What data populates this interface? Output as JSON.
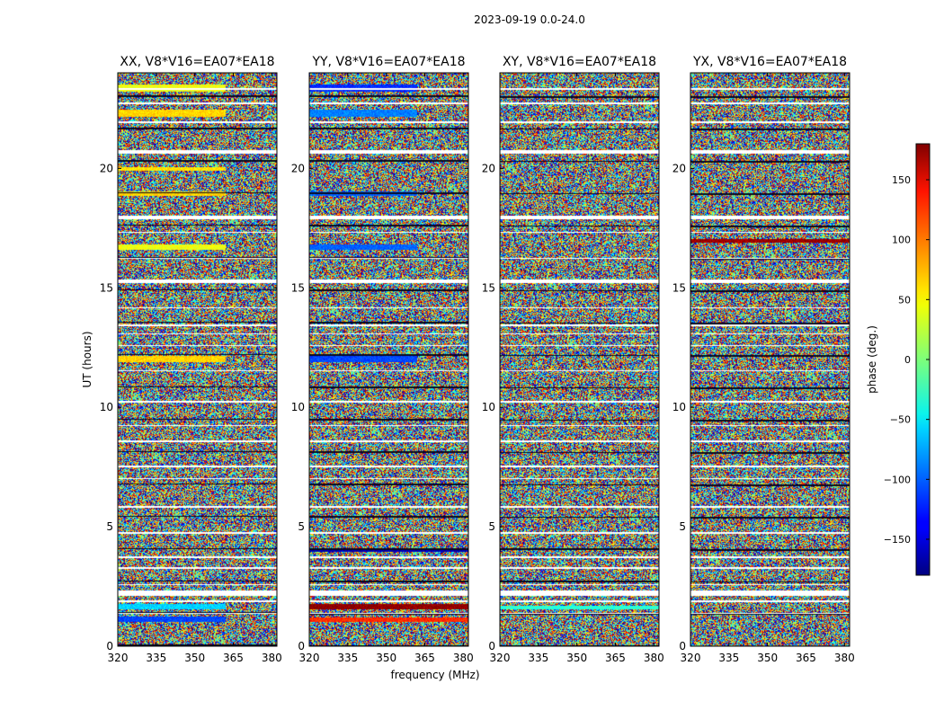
{
  "figure": {
    "suptitle": "2023-09-19 0.0-24.0",
    "xlabel": "frequency (MHz)",
    "ylabel": "UT (hours)",
    "colorbar": {
      "label": "phase (deg.)",
      "ticks": [
        150,
        100,
        50,
        0,
        -50,
        -100,
        -150
      ],
      "range": [
        -180,
        180
      ],
      "colormap": "jet"
    }
  },
  "chart_data": [
    {
      "type": "heatmap",
      "title": "XX, V8*V16=EA07*EA18",
      "xlabel": "frequency (MHz)",
      "ylabel": "UT (hours)",
      "xlim": [
        320,
        382
      ],
      "ylim": [
        0,
        24
      ],
      "xticks": [
        320,
        335,
        350,
        365,
        380
      ],
      "yticks": [
        0,
        5,
        10,
        15,
        20
      ],
      "value": "phase (deg.)",
      "coherent_bands": [
        {
          "t0": 23.2,
          "t1": 23.5,
          "fmax": 362,
          "phase": 40
        },
        {
          "t0": 22.15,
          "t1": 22.45,
          "fmax": 362,
          "phase": 60
        },
        {
          "t0": 19.9,
          "t1": 20.05,
          "fmax": 362,
          "phase": 55
        },
        {
          "t0": 18.85,
          "t1": 19.05,
          "fmax": 362,
          "phase": 60
        },
        {
          "t0": 16.6,
          "t1": 16.8,
          "fmax": 362,
          "phase": 40
        },
        {
          "t0": 11.9,
          "t1": 12.15,
          "fmax": 362,
          "phase": 60
        },
        {
          "t0": 1.0,
          "t1": 1.25,
          "fmax": 362,
          "phase": -110
        },
        {
          "t0": 1.55,
          "t1": 1.75,
          "fmax": 362,
          "phase": -60
        }
      ]
    },
    {
      "type": "heatmap",
      "title": "YY, V8*V16=EA07*EA18",
      "xlabel": "frequency (MHz)",
      "ylabel": "UT (hours)",
      "xlim": [
        320,
        382
      ],
      "ylim": [
        0,
        24
      ],
      "xticks": [
        320,
        335,
        350,
        365,
        380
      ],
      "yticks": [
        0,
        5,
        10,
        15,
        20
      ],
      "value": "phase (deg.)",
      "coherent_bands": [
        {
          "t0": 23.2,
          "t1": 23.5,
          "fmax": 362,
          "phase": -120
        },
        {
          "t0": 22.15,
          "t1": 22.45,
          "fmax": 362,
          "phase": -90
        },
        {
          "t0": 18.85,
          "t1": 19.05,
          "fmax": 362,
          "phase": -100
        },
        {
          "t0": 16.6,
          "t1": 16.8,
          "fmax": 362,
          "phase": -100
        },
        {
          "t0": 11.9,
          "t1": 12.15,
          "fmax": 362,
          "phase": -110
        },
        {
          "t0": 3.95,
          "t1": 4.1,
          "fmax": 382,
          "phase": -160
        },
        {
          "t0": 1.0,
          "t1": 1.2,
          "fmax": 382,
          "phase": 120
        },
        {
          "t0": 1.55,
          "t1": 1.75,
          "fmax": 382,
          "phase": 175
        }
      ]
    },
    {
      "type": "heatmap",
      "title": "XY, V8*V16=EA07*EA18",
      "xlabel": "frequency (MHz)",
      "ylabel": "UT (hours)",
      "xlim": [
        320,
        382
      ],
      "ylim": [
        0,
        24
      ],
      "xticks": [
        320,
        335,
        350,
        365,
        380
      ],
      "yticks": [
        0,
        5,
        10,
        15,
        20
      ],
      "value": "phase (deg.)",
      "coherent_bands": [
        {
          "t0": 1.55,
          "t1": 1.7,
          "fmax": 382,
          "phase": -30
        }
      ]
    },
    {
      "type": "heatmap",
      "title": "YX, V8*V16=EA07*EA18",
      "xlabel": "frequency (MHz)",
      "ylabel": "UT (hours)",
      "xlim": [
        320,
        382
      ],
      "ylim": [
        0,
        24
      ],
      "xticks": [
        320,
        335,
        350,
        365,
        380
      ],
      "yticks": [
        0,
        5,
        10,
        15,
        20
      ],
      "value": "phase (deg.)",
      "coherent_bands": [
        {
          "t0": 16.9,
          "t1": 17.05,
          "fmax": 382,
          "phase": 170
        }
      ]
    }
  ],
  "flagged_gaps_hours": [
    [
      23.3,
      23.36
    ],
    [
      22.7,
      22.76
    ],
    [
      21.9,
      21.95
    ],
    [
      20.6,
      20.75
    ],
    [
      17.85,
      18.0
    ],
    [
      17.3,
      17.36
    ],
    [
      16.2,
      16.26
    ],
    [
      15.2,
      15.35
    ],
    [
      14.15,
      14.2
    ],
    [
      13.4,
      13.47
    ],
    [
      13.05,
      13.1
    ],
    [
      12.55,
      12.62
    ],
    [
      11.5,
      11.56
    ],
    [
      10.2,
      10.26
    ],
    [
      9.2,
      9.25
    ],
    [
      8.55,
      8.6
    ],
    [
      7.5,
      7.56
    ],
    [
      7.0,
      7.05
    ],
    [
      5.8,
      5.85
    ],
    [
      4.7,
      4.76
    ],
    [
      3.7,
      3.75
    ],
    [
      3.25,
      3.3
    ],
    [
      2.55,
      2.6
    ],
    [
      2.1,
      2.35
    ],
    [
      1.85,
      1.9
    ],
    [
      1.35,
      1.4
    ]
  ]
}
